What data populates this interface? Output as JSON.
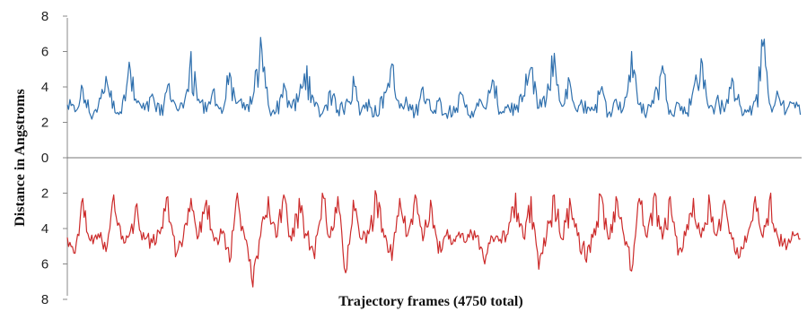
{
  "chart_data": {
    "type": "line",
    "title": "",
    "xlabel": "Trajectory frames (4750 total)",
    "ylabel": "Distance in Angstroms",
    "x_range": [
      0,
      4750
    ],
    "y_tick_labels": [
      "8",
      "6",
      "4",
      "2",
      "0",
      "2",
      "4",
      "6",
      "8"
    ],
    "grid": false,
    "legend": "none",
    "series": [
      {
        "direction": "up",
        "color": "#2e6fad",
        "frame_step": 50,
        "values": [
          3.0,
          2.6,
          3.9,
          2.4,
          2.9,
          4.6,
          3.2,
          2.5,
          5.4,
          3.1,
          2.7,
          3.6,
          2.4,
          4.1,
          3.0,
          2.8,
          6.0,
          3.3,
          2.6,
          3.9,
          2.5,
          4.8,
          3.1,
          2.7,
          3.4,
          6.8,
          3.0,
          2.6,
          4.2,
          2.8,
          3.5,
          5.2,
          2.9,
          2.5,
          3.8,
          2.7,
          3.1,
          4.6,
          2.6,
          3.3,
          2.4,
          3.7,
          5.3,
          2.8,
          3.0,
          2.6,
          4.0,
          2.7,
          3.2,
          2.5,
          2.9,
          3.6,
          2.4,
          3.1,
          2.8,
          4.4,
          2.6,
          3.0,
          2.7,
          3.5,
          5.1,
          2.8,
          3.4,
          5.9,
          2.9,
          4.3,
          2.6,
          3.2,
          2.7,
          3.8,
          2.5,
          3.3,
          2.9,
          6.0,
          3.0,
          2.6,
          3.7,
          5.2,
          2.7,
          3.1,
          2.5,
          3.9,
          5.6,
          2.8,
          3.3,
          2.6,
          4.5,
          3.0,
          2.7,
          3.2,
          6.3,
          2.9,
          3.5,
          2.6,
          3.1
        ]
      },
      {
        "direction": "down",
        "color": "#cc2a2a",
        "frame_step": 50,
        "values": [
          4.5,
          5.4,
          2.3,
          4.7,
          4.3,
          5.3,
          2.1,
          4.6,
          4.4,
          2.6,
          4.6,
          4.8,
          4.3,
          2.2,
          5.6,
          4.5,
          2.3,
          4.4,
          2.4,
          4.7,
          4.3,
          5.9,
          2.0,
          4.6,
          7.3,
          4.4,
          2.2,
          4.5,
          2.1,
          4.7,
          2.3,
          4.4,
          5.7,
          2.0,
          4.5,
          2.2,
          6.5,
          2.4,
          4.6,
          4.3,
          2.1,
          4.5,
          5.8,
          2.3,
          4.4,
          2.1,
          4.7,
          2.4,
          5.4,
          4.4,
          4.6,
          4.3,
          4.5,
          4.4,
          6.0,
          4.5,
          4.6,
          4.3,
          2.0,
          4.5,
          2.2,
          6.3,
          4.4,
          2.1,
          4.6,
          2.3,
          4.4,
          5.7,
          4.5,
          2.1,
          4.6,
          2.2,
          4.4,
          6.4,
          2.3,
          4.5,
          2.0,
          4.6,
          2.2,
          5.5,
          4.4,
          2.3,
          4.5,
          2.1,
          4.4,
          2.4,
          4.6,
          5.6,
          4.4,
          2.2,
          4.5,
          2.0,
          4.6,
          5.2,
          4.4
        ]
      }
    ]
  }
}
